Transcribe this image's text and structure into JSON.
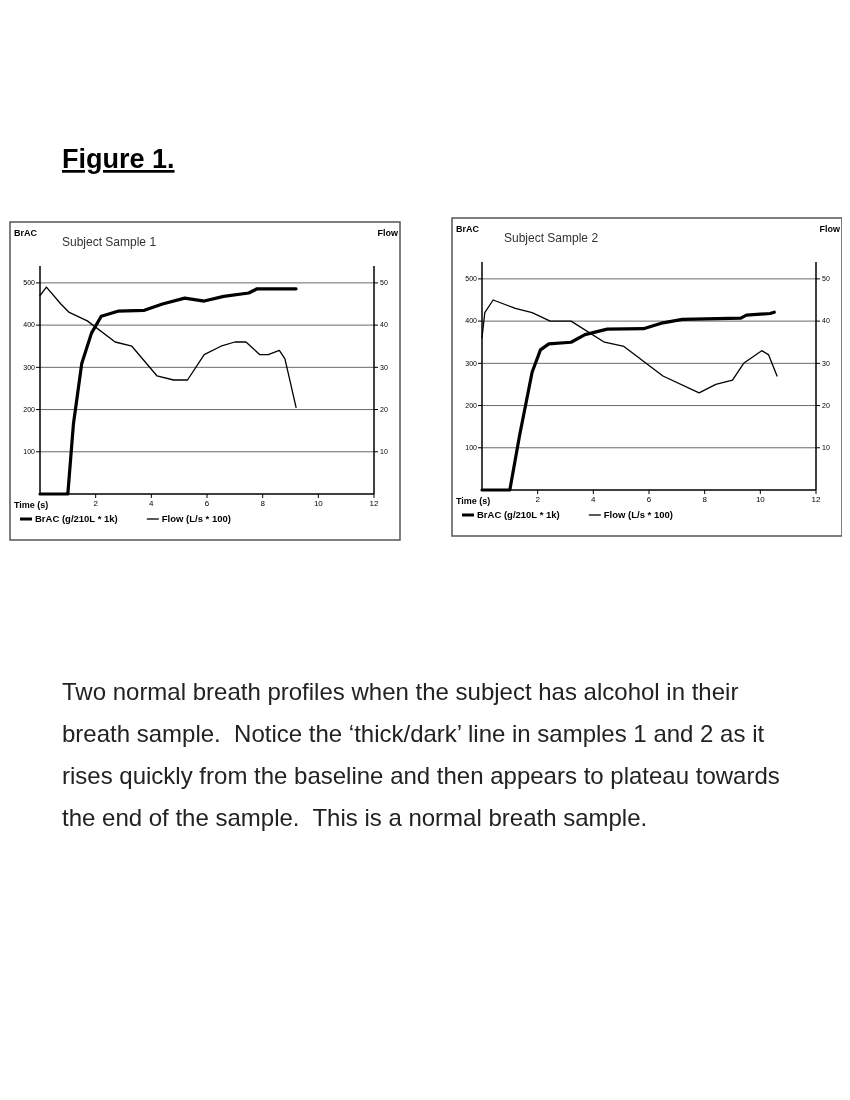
{
  "chart_data": [
    {
      "type": "line",
      "title": "Subject Sample 1",
      "xlabel": "Time (s)",
      "ylabel": "BrAC",
      "y2label": "Flow",
      "xlim": [
        0,
        12
      ],
      "xticks": [
        2,
        4,
        6,
        8,
        10,
        12
      ],
      "ylim": [
        0,
        540
      ],
      "yticks": [
        100,
        200,
        300,
        400,
        500
      ],
      "y2lim": [
        0,
        54
      ],
      "y2ticks": [
        10,
        20,
        30,
        40,
        50
      ],
      "grid": "y",
      "legend": "bottom",
      "annotations": [
        "Figure 1."
      ],
      "series": [
        {
          "name": "BrAC (g/210L * 1k)",
          "color": "#000000",
          "x": [
            0,
            1.0,
            1.2,
            1.5,
            1.85,
            2.2,
            2.8,
            3.75,
            4.4,
            5.2,
            5.9,
            6.6,
            7.5,
            7.8,
            9.2
          ],
          "values": [
            0,
            0,
            165,
            309,
            381,
            421,
            433,
            435,
            450,
            464,
            457,
            468,
            476,
            486,
            486
          ]
        },
        {
          "name": "Flow (L/s * 100)",
          "color": "#000000",
          "axis": "y2",
          "x": [
            0,
            0.23,
            0.75,
            1.05,
            1.7,
            2.7,
            3.3,
            4.2,
            4.8,
            5.3,
            5.9,
            6.5,
            7.0,
            7.4,
            7.9,
            8.2,
            8.6,
            8.8,
            9.2
          ],
          "values": [
            47,
            49,
            45,
            43,
            41,
            36,
            35,
            28,
            27,
            27,
            33,
            35,
            36,
            36,
            33,
            33,
            34,
            32,
            20.5
          ]
        }
      ]
    },
    {
      "type": "line",
      "title": "Subject Sample 2",
      "xlabel": "Time (s)",
      "ylabel": "BrAC",
      "y2label": "Flow",
      "xlim": [
        0,
        12
      ],
      "xticks": [
        2,
        4,
        6,
        8,
        10,
        12
      ],
      "ylim": [
        0,
        540
      ],
      "yticks": [
        100,
        200,
        300,
        400,
        500
      ],
      "y2lim": [
        0,
        54
      ],
      "y2ticks": [
        10,
        20,
        30,
        40,
        50
      ],
      "grid": "y",
      "legend": "bottom",
      "annotations": [
        "Two normal breath profiles when the subject has alcohol in their breath sample.  Notice the ‘thick/dark’ line in samples 1 and 2 as it rises quickly from the baseline and then appears to plateau towards the end of the sample.  This is a normal breath sample."
      ],
      "series": [
        {
          "name": "BrAC (g/210L * 1k)",
          "color": "#000000",
          "x": [
            0,
            1.0,
            1.35,
            1.8,
            2.1,
            2.4,
            3.2,
            3.7,
            4.5,
            5.8,
            6.5,
            7.2,
            9.3,
            9.5,
            10.35,
            10.5
          ],
          "values": [
            0,
            0,
            129,
            279,
            332,
            346,
            350,
            368,
            381,
            382,
            396,
            404,
            407,
            414,
            418,
            421
          ]
        },
        {
          "name": "Flow (L/s * 100)",
          "color": "#000000",
          "axis": "y2",
          "x": [
            0,
            0.1,
            0.4,
            1.2,
            1.8,
            2.45,
            3.2,
            4.4,
            5.1,
            6.5,
            7.8,
            8.4,
            9.0,
            9.4,
            10.05,
            10.3,
            10.6
          ],
          "values": [
            36,
            42,
            45,
            43,
            42,
            40,
            40,
            35,
            34,
            27,
            23,
            25,
            26,
            30,
            33,
            32,
            27
          ]
        }
      ]
    }
  ]
}
